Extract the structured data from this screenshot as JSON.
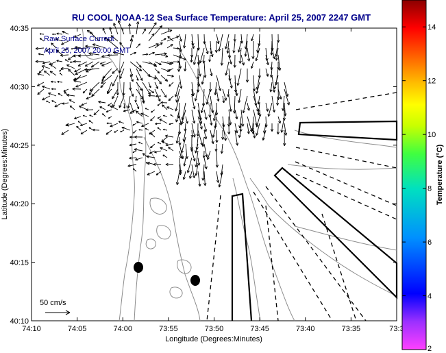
{
  "title": "RU COOL  NOAA-12  Sea Surface Temperature:  April 25, 2007 2247 GMT",
  "legend": {
    "line1": "Raw Surface Current",
    "line2": "April 25, 2007 20:00 GMT"
  },
  "scale_label": "50 cm/s",
  "axes": {
    "xlabel": "Longitude (Degrees:Minutes)",
    "ylabel": "Latitude (Degrees:Minutes)",
    "xticks": [
      "74:10",
      "74:05",
      "74:00",
      "73:55",
      "73:50",
      "73:45",
      "73:40",
      "73:35",
      "73:3"
    ],
    "yticks": [
      "40:35",
      "40:30",
      "40:25",
      "40:20",
      "40:15",
      "40:10"
    ]
  },
  "colorbar": {
    "label": "Temperature (°C)",
    "ticks": [
      "14",
      "12",
      "10",
      "8",
      "6",
      "4",
      "2"
    ],
    "min": 2,
    "max": 15
  },
  "colors": {
    "title": "#00008b",
    "contour": "#8c8c8c",
    "marks": "#000000"
  },
  "chart_data": {
    "type": "map",
    "title": "RU COOL  NOAA-12  Sea Surface Temperature:  April 25, 2007 2247 GMT",
    "xlabel": "Longitude (Degrees:Minutes)",
    "ylabel": "Latitude (Degrees:Minutes)",
    "xlim": [
      "74:10",
      "73:30"
    ],
    "ylim": [
      "40:10",
      "40:35"
    ],
    "markers": [
      {
        "shape": "filled-ellipse",
        "lon": "73:59",
        "lat": "40:14.7"
      },
      {
        "shape": "filled-ellipse",
        "lon": "73:52.5",
        "lat": "40:13.5"
      }
    ]
  }
}
